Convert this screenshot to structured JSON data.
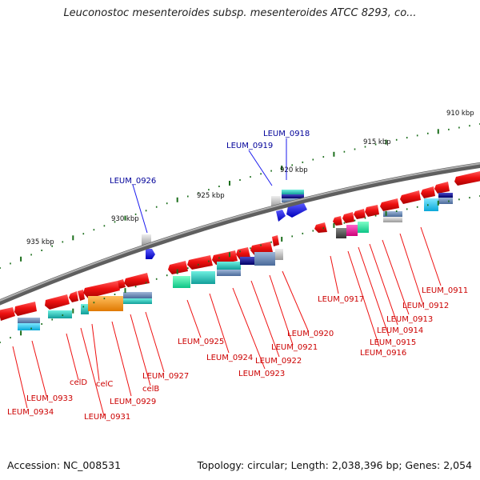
{
  "header": {
    "title": "Leuconostoc mesenteroides subsp. mesenteroides ATCC 8293, co..."
  },
  "footer": {
    "accession": "Accession: NC_008531",
    "topology": "Topology: circular; Length: 2,038,396 bp; Genes: 2,054"
  },
  "scale": {
    "labels": [
      "910 kbp",
      "915 kbp",
      "920 kbp",
      "925 kbp",
      "930 kbp",
      "935 kbp"
    ]
  },
  "genes": {
    "blue": [
      "LEUM_0918",
      "LEUM_0919",
      "LEUM_0926"
    ],
    "red": [
      "LEUM_0911",
      "LEUM_0912",
      "LEUM_0913",
      "LEUM_0914",
      "LEUM_0915",
      "LEUM_0916",
      "LEUM_0917",
      "LEUM_0920",
      "LEUM_0921",
      "LEUM_0922",
      "LEUM_0923",
      "LEUM_0924",
      "LEUM_0925",
      "LEUM_0927",
      "celB",
      "LEUM_0929",
      "celC",
      "celD",
      "LEUM_0931",
      "LEUM_0933",
      "LEUM_0934"
    ]
  },
  "colors": {
    "cds_red": "#ee1111",
    "cds_blue": "#1a1aee",
    "backbone": "#777777",
    "tick_green": "#1b6e1b",
    "label_red": "#cc0000",
    "label_blue": "#000099"
  }
}
